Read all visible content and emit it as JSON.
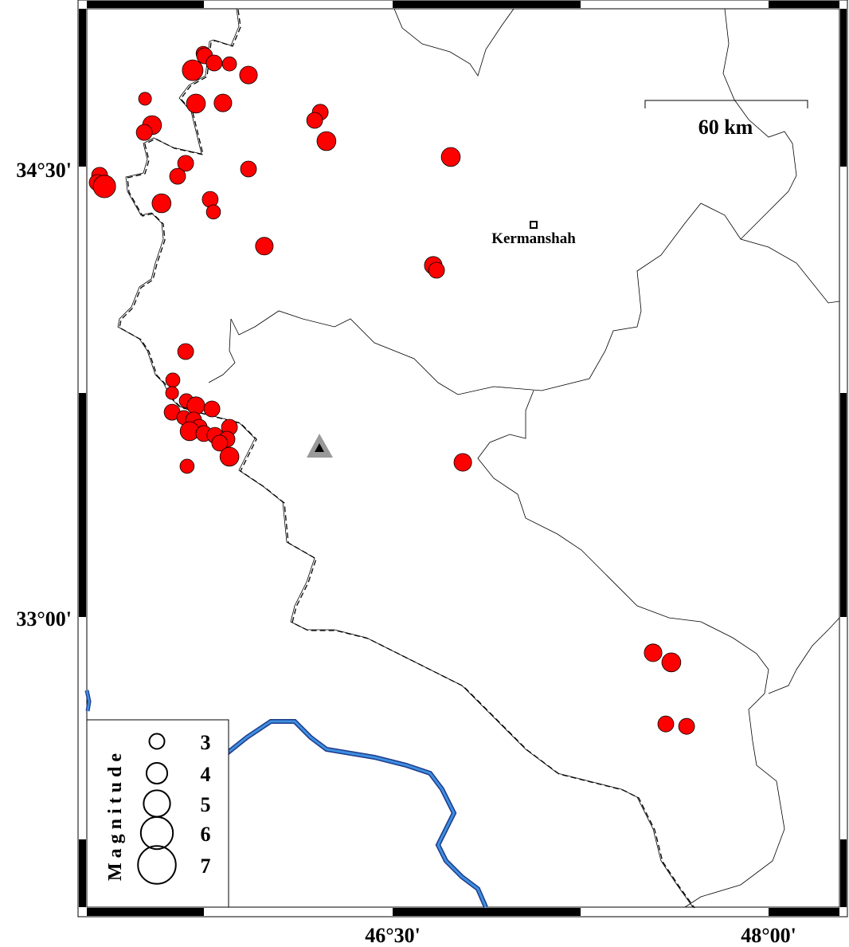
{
  "map": {
    "axes": {
      "lon_ticks": [
        {
          "value": 46.5,
          "label": "46°30'"
        },
        {
          "value": 48.0,
          "label": "48°00'"
        }
      ],
      "lat_ticks": [
        {
          "value": 34.5,
          "label": "34°30'"
        },
        {
          "value": 33.0,
          "label": "33°00'"
        }
      ]
    },
    "scale_bar": {
      "label": "60 km"
    },
    "city": {
      "name": "Kermanshah",
      "lon": 47.062,
      "lat": 34.306,
      "icon": "square-marker-icon"
    },
    "station": {
      "lon": 46.204,
      "lat": 33.56,
      "icon": "triangle-marker-icon",
      "color": "#000000",
      "halo_color": "#999999"
    },
    "colors": {
      "earthquake": "#ff0000",
      "river": "#3d8fe0",
      "river_outline": "#1f3a8a",
      "border": "#000000"
    },
    "legend": {
      "title": "Magnitude",
      "items": [
        {
          "magnitude": 3,
          "label": "3"
        },
        {
          "magnitude": 4,
          "label": "4"
        },
        {
          "magnitude": 5,
          "label": "5"
        },
        {
          "magnitude": 6,
          "label": "6"
        },
        {
          "magnitude": 7,
          "label": "7"
        }
      ]
    },
    "earthquakes": [
      {
        "lon": 45.744,
        "lat": 34.877,
        "mag": 2.7
      },
      {
        "lon": 45.75,
        "lat": 34.869,
        "mag": 3.0
      },
      {
        "lon": 45.788,
        "lat": 34.845,
        "mag": 3.0
      },
      {
        "lon": 45.849,
        "lat": 34.842,
        "mag": 2.7
      },
      {
        "lon": 45.702,
        "lat": 34.821,
        "mag": 3.8
      },
      {
        "lon": 45.925,
        "lat": 34.805,
        "mag": 3.3
      },
      {
        "lon": 45.512,
        "lat": 34.726,
        "mag": 2.5
      },
      {
        "lon": 45.715,
        "lat": 34.71,
        "mag": 3.5
      },
      {
        "lon": 45.823,
        "lat": 34.712,
        "mag": 3.3
      },
      {
        "lon": 45.54,
        "lat": 34.638,
        "mag": 3.5
      },
      {
        "lon": 45.509,
        "lat": 34.614,
        "mag": 3.0
      },
      {
        "lon": 46.211,
        "lat": 34.681,
        "mag": 3.0
      },
      {
        "lon": 46.189,
        "lat": 34.654,
        "mag": 3.0
      },
      {
        "lon": 46.236,
        "lat": 34.585,
        "mag": 3.5
      },
      {
        "lon": 46.732,
        "lat": 34.532,
        "mag": 3.5
      },
      {
        "lon": 45.674,
        "lat": 34.511,
        "mag": 3.0
      },
      {
        "lon": 45.925,
        "lat": 34.492,
        "mag": 3.0
      },
      {
        "lon": 45.642,
        "lat": 34.468,
        "mag": 3.0
      },
      {
        "lon": 45.331,
        "lat": 34.471,
        "mag": 3.0
      },
      {
        "lon": 45.321,
        "lat": 34.447,
        "mag": 3.0
      },
      {
        "lon": 45.35,
        "lat": 34.434,
        "mag": 4.1
      },
      {
        "lon": 45.578,
        "lat": 34.378,
        "mag": 3.5
      },
      {
        "lon": 45.772,
        "lat": 34.391,
        "mag": 3.0
      },
      {
        "lon": 45.785,
        "lat": 34.349,
        "mag": 2.7
      },
      {
        "lon": 45.988,
        "lat": 34.235,
        "mag": 3.3
      },
      {
        "lon": 46.662,
        "lat": 34.171,
        "mag": 3.3
      },
      {
        "lon": 46.675,
        "lat": 34.155,
        "mag": 3.0
      },
      {
        "lon": 45.674,
        "lat": 33.884,
        "mag": 3.0
      },
      {
        "lon": 45.623,
        "lat": 33.789,
        "mag": 2.7
      },
      {
        "lon": 45.62,
        "lat": 33.746,
        "mag": 2.5
      },
      {
        "lon": 45.677,
        "lat": 33.72,
        "mag": 2.7
      },
      {
        "lon": 45.715,
        "lat": 33.704,
        "mag": 3.3
      },
      {
        "lon": 45.779,
        "lat": 33.693,
        "mag": 3.0
      },
      {
        "lon": 45.62,
        "lat": 33.682,
        "mag": 3.0
      },
      {
        "lon": 45.667,
        "lat": 33.664,
        "mag": 2.7
      },
      {
        "lon": 45.706,
        "lat": 33.656,
        "mag": 3.0
      },
      {
        "lon": 45.728,
        "lat": 33.632,
        "mag": 3.0
      },
      {
        "lon": 45.69,
        "lat": 33.619,
        "mag": 3.5
      },
      {
        "lon": 45.747,
        "lat": 33.611,
        "mag": 3.0
      },
      {
        "lon": 45.791,
        "lat": 33.605,
        "mag": 3.0
      },
      {
        "lon": 45.849,
        "lat": 33.632,
        "mag": 3.0
      },
      {
        "lon": 45.839,
        "lat": 33.592,
        "mag": 3.0
      },
      {
        "lon": 45.81,
        "lat": 33.579,
        "mag": 3.0
      },
      {
        "lon": 45.849,
        "lat": 33.534,
        "mag": 3.5
      },
      {
        "lon": 45.68,
        "lat": 33.502,
        "mag": 2.7
      },
      {
        "lon": 46.78,
        "lat": 33.515,
        "mag": 3.3
      },
      {
        "lon": 47.539,
        "lat": 32.881,
        "mag": 3.3
      },
      {
        "lon": 47.612,
        "lat": 32.849,
        "mag": 3.5
      },
      {
        "lon": 47.59,
        "lat": 32.644,
        "mag": 3.0
      },
      {
        "lon": 47.673,
        "lat": 32.636,
        "mag": 3.0
      }
    ]
  }
}
